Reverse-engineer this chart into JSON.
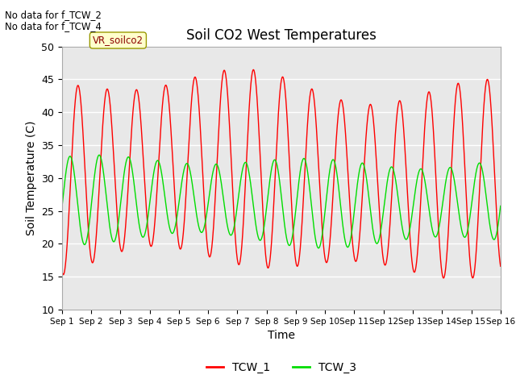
{
  "title": "Soil CO2 West Temperatures",
  "xlabel": "Time",
  "ylabel": "Soil Temperature (C)",
  "ylim": [
    10,
    50
  ],
  "xlim": [
    0,
    15
  ],
  "background_color": "#e8e8e8",
  "grid_color": "white",
  "tcw1_color": "red",
  "tcw3_color": "#00dd00",
  "vr_label": "VR_soilco2",
  "no_data_lines": [
    "No data for f_TCW_2",
    "No data for f_TCW_4"
  ],
  "xtick_labels": [
    "Sep 1",
    "Sep 2",
    "Sep 3",
    "Sep 4",
    "Sep 5",
    "Sep 6",
    "Sep 7",
    "Sep 8",
    "Sep 9",
    "Sep 10",
    "Sep 11",
    "Sep 12",
    "Sep 13",
    "Sep 14",
    "Sep 15",
    "Sep 16"
  ],
  "ytick_values": [
    10,
    15,
    20,
    25,
    30,
    35,
    40,
    45,
    50
  ],
  "legend_labels": [
    "TCW_1",
    "TCW_3"
  ],
  "figsize": [
    6.4,
    4.8
  ],
  "dpi": 100
}
